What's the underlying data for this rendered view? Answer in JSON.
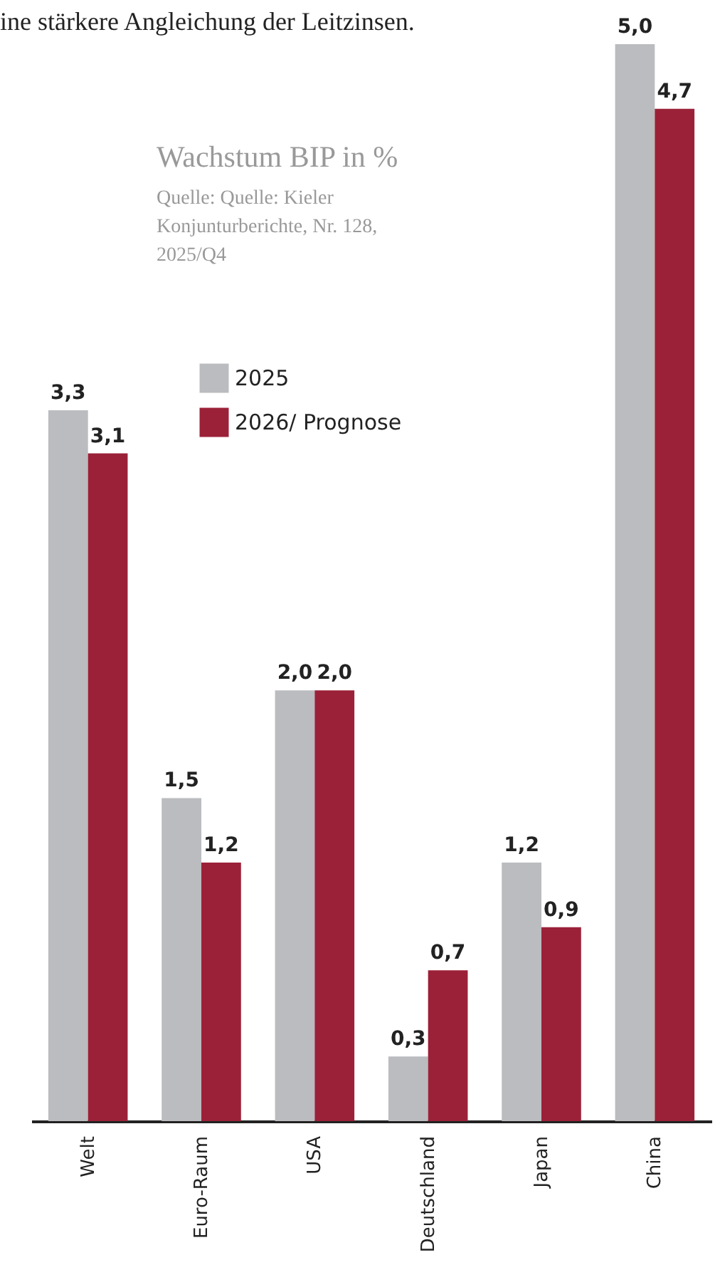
{
  "chart_data": {
    "type": "bar",
    "title": "Wachstum BIP in %",
    "annotations": [
      "ine stärkere Angleichung der Leitzinsen.",
      "Quelle: Quelle: Kieler\nKonjunturberichte, Nr. 128,\n2025/Q4"
    ],
    "categories": [
      "Welt",
      "Euro-Raum",
      "USA",
      "Deutschland",
      "Japan",
      "China"
    ],
    "series": [
      {
        "name": "2025",
        "color": "#bbbcbf",
        "values": [
          3.3,
          1.5,
          2.0,
          0.3,
          1.2,
          5.0
        ],
        "value_labels": [
          "3,3",
          "1,5",
          "2,0",
          "0,3",
          "1,2",
          "5,0"
        ]
      },
      {
        "name": "2026/ Prognose",
        "color": "#9b2139",
        "values": [
          3.1,
          1.2,
          2.0,
          0.7,
          0.9,
          4.7
        ],
        "value_labels": [
          "3,1",
          "1,2",
          "2,0",
          "0,7",
          "0,9",
          "4,7"
        ]
      }
    ],
    "grid": false,
    "legend": "top"
  }
}
